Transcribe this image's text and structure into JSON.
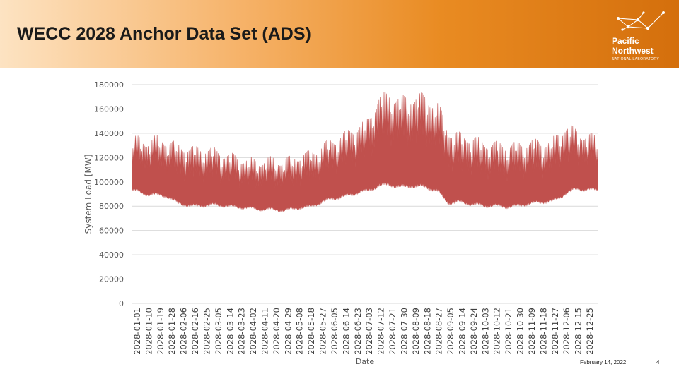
{
  "slide": {
    "title": "WECC 2028 Anchor Data Set (ADS)",
    "footer_date": "February 14, 2022",
    "page_number": "4"
  },
  "logo": {
    "line1": "Pacific",
    "line2": "Northwest",
    "line3": "NATIONAL LABORATORY",
    "icon": "pnnl-network-mark-icon"
  },
  "colors": {
    "series": "#c0504d",
    "banner_accent": "#e98b22",
    "gridline": "#d9d9d9"
  },
  "chart_data": {
    "type": "area",
    "title": "",
    "xlabel": "Date",
    "ylabel": "System Load [MW]",
    "ylim": [
      0,
      180000
    ],
    "yticks": [
      0,
      20000,
      40000,
      60000,
      80000,
      100000,
      120000,
      140000,
      160000,
      180000
    ],
    "grid": true,
    "legend": "none",
    "x_tick_labels": [
      "2028-01-01",
      "2028-01-10",
      "2028-01-19",
      "2028-01-28",
      "2028-02-06",
      "2028-02-16",
      "2028-02-25",
      "2028-03-05",
      "2028-03-14",
      "2028-03-23",
      "2028-04-02",
      "2028-04-11",
      "2028-04-20",
      "2028-04-29",
      "2028-05-08",
      "2028-05-18",
      "2028-05-27",
      "2028-06-05",
      "2028-06-14",
      "2028-06-23",
      "2028-07-03",
      "2028-07-12",
      "2028-07-21",
      "2028-07-30",
      "2028-08-09",
      "2028-08-18",
      "2028-08-27",
      "2028-09-05",
      "2028-09-14",
      "2028-09-24",
      "2028-10-03",
      "2028-10-12",
      "2028-10-21",
      "2028-10-30",
      "2028-11-09",
      "2028-11-18",
      "2028-11-27",
      "2028-12-06",
      "2028-12-15",
      "2028-12-25"
    ],
    "daily_envelope": {
      "x": [
        "2028-01-01",
        "2028-01-10",
        "2028-01-19",
        "2028-01-28",
        "2028-02-06",
        "2028-02-16",
        "2028-02-25",
        "2028-03-05",
        "2028-03-14",
        "2028-03-23",
        "2028-04-02",
        "2028-04-11",
        "2028-04-20",
        "2028-04-29",
        "2028-05-08",
        "2028-05-18",
        "2028-05-27",
        "2028-06-05",
        "2028-06-14",
        "2028-06-23",
        "2028-07-03",
        "2028-07-12",
        "2028-07-21",
        "2028-07-30",
        "2028-08-09",
        "2028-08-18",
        "2028-08-27",
        "2028-09-05",
        "2028-09-14",
        "2028-09-24",
        "2028-10-03",
        "2028-10-12",
        "2028-10-21",
        "2028-10-30",
        "2028-11-09",
        "2028-11-18",
        "2028-11-27",
        "2028-12-06",
        "2028-12-15",
        "2028-12-25"
      ],
      "daily_min_mw": [
        93000,
        90000,
        89000,
        88000,
        82000,
        80000,
        80000,
        81000,
        80000,
        79000,
        78000,
        77000,
        77000,
        76000,
        78000,
        79000,
        82000,
        86000,
        87000,
        90000,
        92000,
        96000,
        97000,
        95000,
        96000,
        95000,
        92000,
        82000,
        83000,
        81000,
        80000,
        80000,
        79000,
        80000,
        82000,
        83000,
        84000,
        90000,
        94000,
        93000
      ],
      "daily_max_mw": [
        136000,
        132000,
        135000,
        133000,
        129000,
        126000,
        127000,
        125000,
        122000,
        119000,
        117000,
        116000,
        118000,
        116000,
        120000,
        122000,
        127000,
        133000,
        137000,
        143000,
        148000,
        167000,
        171000,
        166000,
        169000,
        168000,
        163000,
        141000,
        137000,
        135000,
        131000,
        130000,
        129000,
        130000,
        132000,
        131000,
        134000,
        145000,
        140000,
        136000
      ]
    }
  }
}
